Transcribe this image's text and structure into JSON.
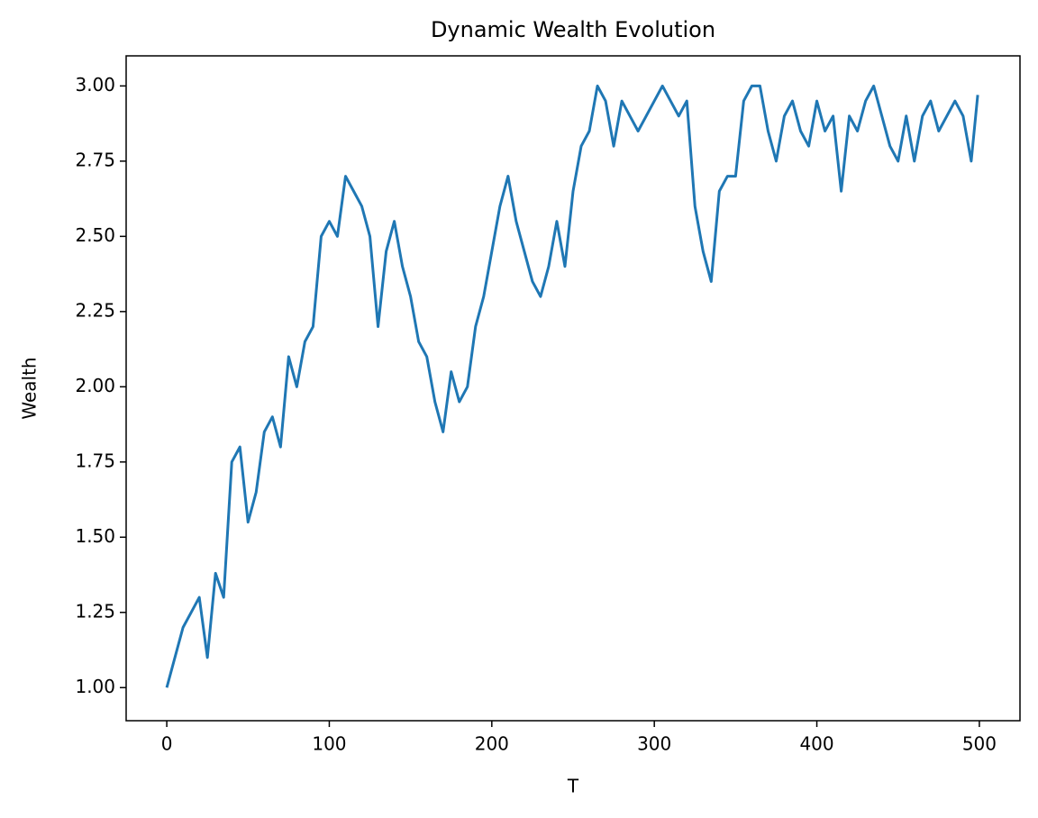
{
  "chart_data": {
    "type": "line",
    "title": "Dynamic Wealth Evolution",
    "x_label": "T",
    "y_label": "Wealth",
    "x": [
      0,
      5,
      10,
      15,
      20,
      25,
      30,
      35,
      40,
      45,
      50,
      55,
      60,
      65,
      70,
      75,
      80,
      85,
      90,
      95,
      100,
      105,
      110,
      115,
      120,
      125,
      130,
      135,
      140,
      145,
      150,
      155,
      160,
      165,
      170,
      175,
      180,
      185,
      190,
      195,
      200,
      205,
      210,
      215,
      220,
      225,
      230,
      235,
      240,
      245,
      250,
      255,
      260,
      265,
      270,
      275,
      280,
      285,
      290,
      295,
      300,
      305,
      310,
      315,
      320,
      325,
      330,
      335,
      340,
      345,
      350,
      355,
      360,
      365,
      370,
      375,
      380,
      385,
      390,
      395,
      400,
      405,
      410,
      415,
      420,
      425,
      430,
      435,
      440,
      445,
      450,
      455,
      460,
      465,
      470,
      475,
      480,
      485,
      490,
      495,
      499
    ],
    "series": [
      {
        "name": "Wealth",
        "color": "#1f77b4",
        "values": [
          1.0,
          1.1,
          1.2,
          1.25,
          1.3,
          1.1,
          1.38,
          1.3,
          1.75,
          1.8,
          1.55,
          1.65,
          1.85,
          1.9,
          1.8,
          2.1,
          2.0,
          2.15,
          2.2,
          2.5,
          2.55,
          2.5,
          2.7,
          2.65,
          2.6,
          2.5,
          2.2,
          2.45,
          2.55,
          2.4,
          2.3,
          2.15,
          2.1,
          1.95,
          1.85,
          2.05,
          1.95,
          2.0,
          2.2,
          2.3,
          2.45,
          2.6,
          2.7,
          2.55,
          2.45,
          2.35,
          2.3,
          2.4,
          2.55,
          2.4,
          2.65,
          2.8,
          2.85,
          3.0,
          2.95,
          2.8,
          2.95,
          2.9,
          2.85,
          2.9,
          2.95,
          3.0,
          2.95,
          2.9,
          2.95,
          2.6,
          2.45,
          2.35,
          2.65,
          2.7,
          2.7,
          2.95,
          3.0,
          3.0,
          2.85,
          2.75,
          2.9,
          2.95,
          2.85,
          2.8,
          2.95,
          2.85,
          2.9,
          2.65,
          2.9,
          2.85,
          2.95,
          3.0,
          2.9,
          2.8,
          2.75,
          2.9,
          2.75,
          2.9,
          2.95,
          2.85,
          2.9,
          2.95,
          2.9,
          2.75,
          2.97
        ]
      }
    ],
    "xlim": [
      -25,
      525
    ],
    "ylim": [
      0.89,
      3.1
    ],
    "xticks": [
      0,
      100,
      200,
      300,
      400,
      500
    ],
    "yticks": [
      {
        "value": 1.0,
        "label": "1.00"
      },
      {
        "value": 1.25,
        "label": "1.25"
      },
      {
        "value": 1.5,
        "label": "1.50"
      },
      {
        "value": 1.75,
        "label": "1.75"
      },
      {
        "value": 2.0,
        "label": "2.00"
      },
      {
        "value": 2.25,
        "label": "2.25"
      },
      {
        "value": 2.5,
        "label": "2.50"
      },
      {
        "value": 2.75,
        "label": "2.75"
      },
      {
        "value": 3.0,
        "label": "3.00"
      }
    ]
  }
}
